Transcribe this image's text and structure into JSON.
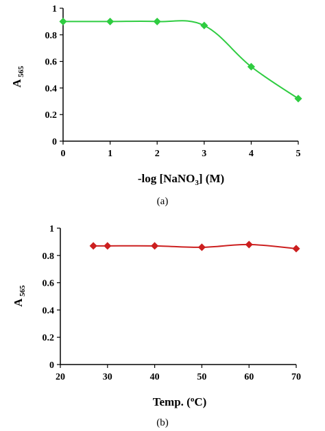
{
  "chart_data": [
    {
      "type": "line",
      "caption": "(a)",
      "xlabel": "-log [NaNO3] (M)",
      "ylabel": "A 565",
      "xlim": [
        0,
        5
      ],
      "ylim": [
        0,
        1
      ],
      "xticks": [
        "0",
        "1",
        "2",
        "3",
        "4",
        "5"
      ],
      "yticks": [
        "0",
        "0.2",
        "0.4",
        "0.6",
        "0.8",
        "1"
      ],
      "grid": false,
      "color": "#2ecc40",
      "marker": "diamond",
      "series": [
        {
          "x": [
            0,
            1,
            2,
            3,
            4,
            5
          ],
          "y": [
            0.9,
            0.9,
            0.9,
            0.87,
            0.56,
            0.32
          ]
        }
      ]
    },
    {
      "type": "line",
      "caption": "(b)",
      "xlabel": "Temp. (oC)",
      "ylabel": "A 565",
      "xlim": [
        20,
        70
      ],
      "ylim": [
        0,
        1
      ],
      "xticks": [
        "20",
        "30",
        "40",
        "50",
        "60",
        "70"
      ],
      "yticks": [
        "0",
        "0.2",
        "0.4",
        "0.6",
        "0.8",
        "1"
      ],
      "grid": false,
      "color": "#cc1f1f",
      "marker": "diamond",
      "series": [
        {
          "x": [
            27,
            30,
            40,
            50,
            60,
            70
          ],
          "y": [
            0.87,
            0.87,
            0.87,
            0.86,
            0.88,
            0.85
          ]
        }
      ]
    }
  ]
}
